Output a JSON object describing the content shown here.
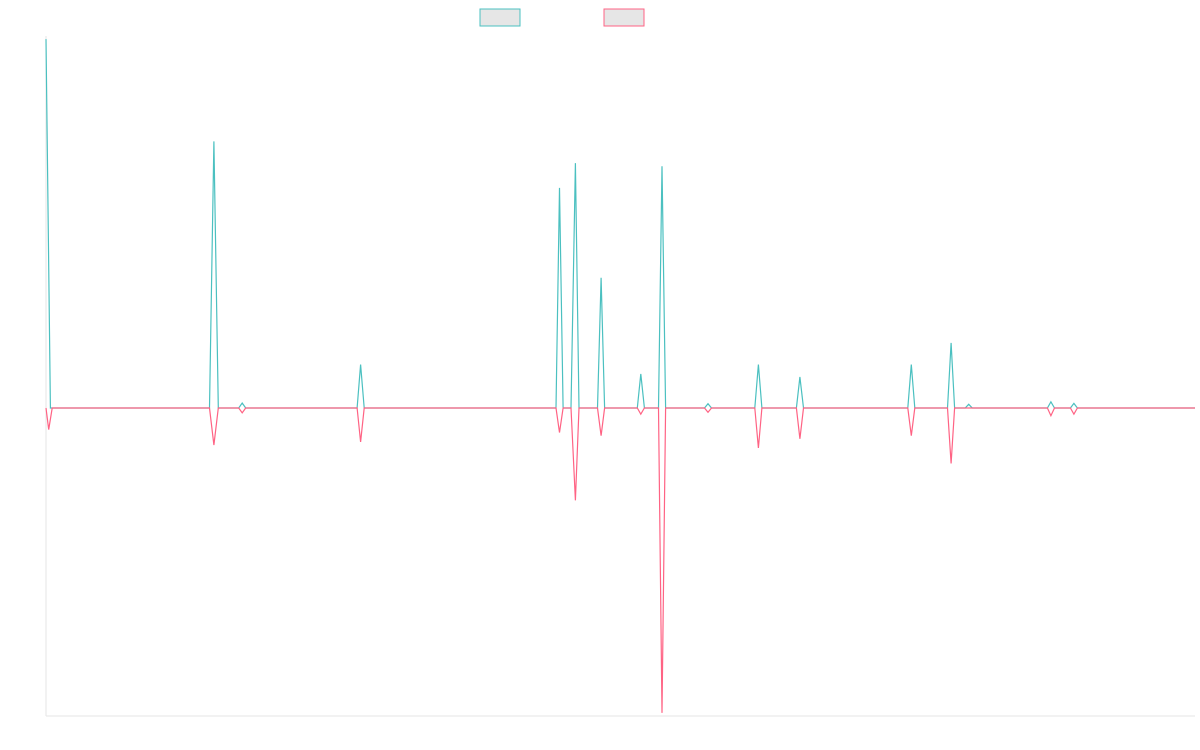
{
  "chart_data": {
    "type": "line",
    "title": "",
    "xlabel": "",
    "ylabel": "",
    "x_count": 130,
    "ylim": [
      -1.0,
      1.2
    ],
    "grid": false,
    "legend_position": "top-center",
    "series": [
      {
        "color": "#4bc0c0",
        "points": [
          [
            0,
            1.19
          ],
          [
            0.5,
            0.0
          ],
          [
            18.5,
            0.0
          ],
          [
            19,
            0.86
          ],
          [
            19.5,
            0.0
          ],
          [
            21.8,
            0.0
          ],
          [
            22.2,
            0.016
          ],
          [
            22.6,
            0.0
          ],
          [
            35.2,
            0.0
          ],
          [
            35.6,
            0.14
          ],
          [
            36,
            0.0
          ],
          [
            57.7,
            0.0
          ],
          [
            58.1,
            0.71
          ],
          [
            58.5,
            0.0
          ],
          [
            59.4,
            0.0
          ],
          [
            59.9,
            0.79
          ],
          [
            60.3,
            0.0
          ],
          [
            62.4,
            0.0
          ],
          [
            62.8,
            0.42
          ],
          [
            63.2,
            0.0
          ],
          [
            66.9,
            0.0
          ],
          [
            67.3,
            0.11
          ],
          [
            67.7,
            0.0
          ],
          [
            69.3,
            0.0
          ],
          [
            69.7,
            0.78
          ],
          [
            70.1,
            0.0
          ],
          [
            74.5,
            0.0
          ],
          [
            74.9,
            0.014
          ],
          [
            75.3,
            0.0
          ],
          [
            80.2,
            0.0
          ],
          [
            80.6,
            0.14
          ],
          [
            81,
            0.0
          ],
          [
            84.9,
            0.0
          ],
          [
            85.3,
            0.1
          ],
          [
            85.7,
            0.0
          ],
          [
            97.5,
            0.0
          ],
          [
            97.9,
            0.14
          ],
          [
            98.3,
            0.0
          ],
          [
            102,
            0.0
          ],
          [
            102.4,
            0.21
          ],
          [
            102.8,
            0.0
          ],
          [
            104,
            0.0
          ],
          [
            104.4,
            0.012
          ],
          [
            104.8,
            0.0
          ],
          [
            113.3,
            0.0
          ],
          [
            113.7,
            0.02
          ],
          [
            114.1,
            0.0
          ],
          [
            115.9,
            0.0
          ],
          [
            116.3,
            0.015
          ],
          [
            116.7,
            0.0
          ],
          [
            130,
            0.0
          ]
        ]
      },
      {
        "color": "#ff6384",
        "points": [
          [
            0,
            0.0
          ],
          [
            0.3,
            -0.07
          ],
          [
            0.7,
            0.0
          ],
          [
            18.5,
            0.0
          ],
          [
            19,
            -0.12
          ],
          [
            19.5,
            0.0
          ],
          [
            21.8,
            0.0
          ],
          [
            22.2,
            -0.016
          ],
          [
            22.6,
            0.0
          ],
          [
            35.2,
            0.0
          ],
          [
            35.6,
            -0.11
          ],
          [
            36,
            0.0
          ],
          [
            57.7,
            0.0
          ],
          [
            58.1,
            -0.08
          ],
          [
            58.5,
            0.0
          ],
          [
            59.4,
            0.0
          ],
          [
            59.9,
            -0.3
          ],
          [
            60.3,
            0.0
          ],
          [
            62.4,
            0.0
          ],
          [
            62.8,
            -0.09
          ],
          [
            63.2,
            0.0
          ],
          [
            66.9,
            0.0
          ],
          [
            67.3,
            -0.02
          ],
          [
            67.7,
            0.0
          ],
          [
            69.3,
            0.0
          ],
          [
            69.7,
            -0.99
          ],
          [
            70.1,
            0.0
          ],
          [
            74.5,
            0.0
          ],
          [
            74.9,
            -0.014
          ],
          [
            75.3,
            0.0
          ],
          [
            80.2,
            0.0
          ],
          [
            80.6,
            -0.13
          ],
          [
            81,
            0.0
          ],
          [
            84.9,
            0.0
          ],
          [
            85.3,
            -0.1
          ],
          [
            85.7,
            0.0
          ],
          [
            97.5,
            0.0
          ],
          [
            97.9,
            -0.09
          ],
          [
            98.3,
            0.0
          ],
          [
            102,
            0.0
          ],
          [
            102.4,
            -0.18
          ],
          [
            102.8,
            0.0
          ],
          [
            113.3,
            0.0
          ],
          [
            113.7,
            -0.025
          ],
          [
            114.1,
            0.0
          ],
          [
            115.9,
            0.0
          ],
          [
            116.3,
            -0.02
          ],
          [
            116.7,
            0.0
          ],
          [
            130,
            0.0
          ]
        ]
      }
    ]
  }
}
